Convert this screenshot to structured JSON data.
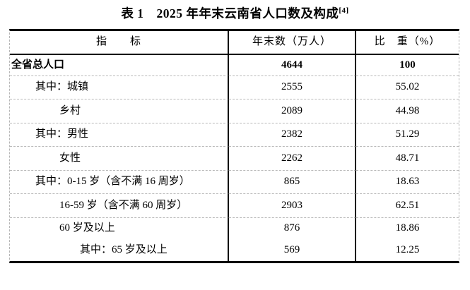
{
  "title": {
    "label": "表 1　2025 年年末云南省人口数及构成",
    "superscript": "[4]"
  },
  "table": {
    "header": {
      "indicator": "指　　标",
      "yearend": "年末数（万人）",
      "share": "比　重（%）"
    },
    "rows": [
      {
        "indicator": "全省总人口",
        "yearend": "4644",
        "share": "100",
        "bold": true,
        "level": 0
      },
      {
        "indicator": "其中：城镇",
        "yearend": "2555",
        "share": "55.02",
        "bold": false,
        "level": 1
      },
      {
        "indicator": "乡村",
        "yearend": "2089",
        "share": "44.98",
        "bold": false,
        "level": 2
      },
      {
        "indicator": "其中：男性",
        "yearend": "2382",
        "share": "51.29",
        "bold": false,
        "level": 1
      },
      {
        "indicator": "女性",
        "yearend": "2262",
        "share": "48.71",
        "bold": false,
        "level": 2
      },
      {
        "indicator": "其中：0-15 岁（含不满 16 周岁）",
        "yearend": "865",
        "share": "18.63",
        "bold": false,
        "level": 1
      },
      {
        "indicator": "16-59 岁（含不满 60 周岁）",
        "yearend": "2903",
        "share": "62.51",
        "bold": false,
        "level": 2
      },
      {
        "indicator": "60 岁及以上",
        "yearend": "876",
        "share": "18.86",
        "bold": false,
        "level": 2
      },
      {
        "indicator": "其中：65 岁及以上",
        "yearend": "569",
        "share": "12.25",
        "bold": false,
        "level": 3
      }
    ]
  }
}
